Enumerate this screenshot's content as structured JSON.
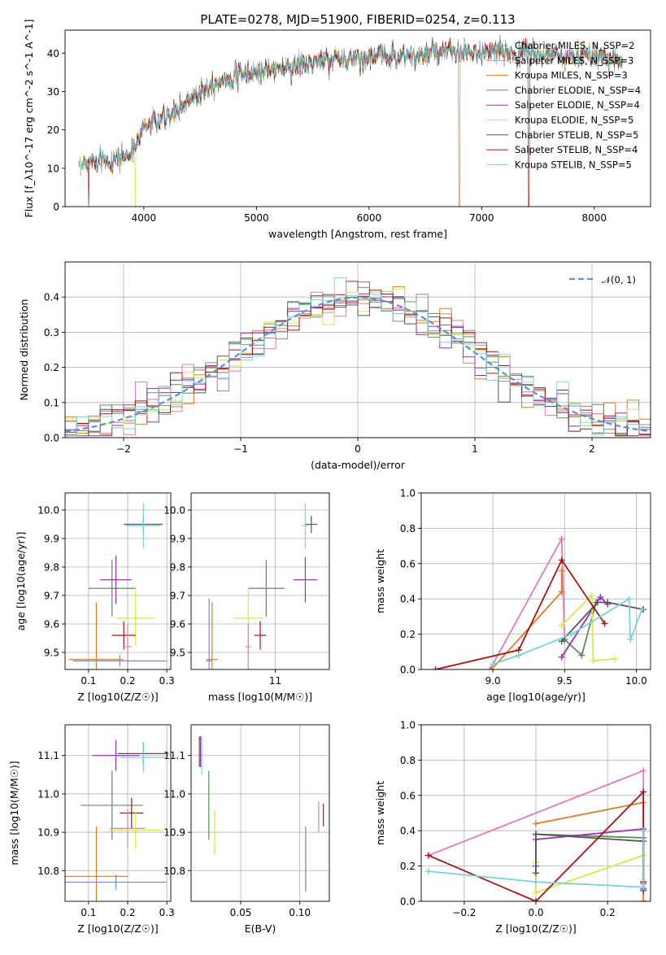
{
  "title": "PLATE=0278, MJD=51900, FIBERID=0254, z=0.113",
  "colors": {
    "chabrier_miles": "#888888",
    "salpeter_miles": "#e07ab7",
    "kroupa_miles": "#d97d28",
    "chabrier_elodie": "#5e8c5c",
    "salpeter_elodie": "#9b30b0",
    "kroupa_elodie": "#d8e84a",
    "chabrier_stelib": "#555555",
    "salpeter_stelib": "#a51515",
    "kroupa_stelib": "#78d2d8",
    "blue": "#6f8fd8",
    "normal": "#5b8fd8"
  },
  "chart_data": [
    {
      "id": "spectrum",
      "type": "line",
      "xlabel": "wavelength [Angstrom, rest frame]",
      "ylabel": "Flux [f_λ10^-17 erg cm^-2 s^-1 A^-1]",
      "xlim": [
        3300,
        8500
      ],
      "ylim": [
        0,
        46
      ],
      "xticks": [
        4000,
        5000,
        6000,
        7000,
        8000
      ],
      "yticks": [
        0,
        10,
        20,
        30,
        40
      ],
      "grid": false,
      "legend_position": "right",
      "continuum": {
        "x": [
          3400,
          3500,
          3600,
          3700,
          3800,
          3900,
          4000,
          4100,
          4200,
          4300,
          4400,
          4600,
          4800,
          5000,
          5200,
          5400,
          5600,
          5800,
          6000,
          6200,
          6400,
          6600,
          6800,
          7000,
          7200,
          7400,
          7600,
          7800,
          8000,
          8200,
          8300
        ],
        "y": [
          9,
          11,
          13,
          12,
          13,
          14,
          21,
          22,
          23,
          25,
          28,
          32,
          34,
          35,
          36,
          37,
          38,
          38.5,
          39,
          39.5,
          39,
          40,
          40,
          40,
          40,
          40,
          39.5,
          39,
          39,
          39,
          38
        ]
      },
      "legend": [
        {
          "name": "Chabrier MILES, N_SSP=2",
          "color": "#888888"
        },
        {
          "name": "Salpeter MILES, N_SSP=3",
          "color": "#e07ab7"
        },
        {
          "name": "Kroupa MILES, N_SSP=3",
          "color": "#d97d28"
        },
        {
          "name": "Chabrier ELODIE, N_SSP=4",
          "color": "#5e8c5c"
        },
        {
          "name": "Salpeter ELODIE, N_SSP=4",
          "color": "#9b30b0"
        },
        {
          "name": "Kroupa ELODIE, N_SSP=5",
          "color": "#d8e84a"
        },
        {
          "name": "Chabrier STELIB, N_SSP=5",
          "color": "#555555"
        },
        {
          "name": "Salpeter STELIB, N_SSP=4",
          "color": "#a51515"
        },
        {
          "name": "Kroupa STELIB, N_SSP=5",
          "color": "#78d2d8"
        }
      ]
    },
    {
      "id": "residuals",
      "type": "line",
      "xlabel": "(data-model)/error",
      "ylabel": "Normed distribution",
      "xlim": [
        -2.5,
        2.5
      ],
      "ylim": [
        0,
        0.5
      ],
      "xticks": [
        -2,
        -1,
        0,
        1,
        2
      ],
      "yticks": [
        0.0,
        0.1,
        0.2,
        0.3,
        0.4
      ],
      "grid": true,
      "legend": [
        {
          "name": "𝒩(0, 1)",
          "color": "#5b8fd8"
        }
      ],
      "legend_position": "top-right"
    },
    {
      "id": "age_vs_Z",
      "type": "scatter",
      "xlabel": "Z [log10(Z/Z☉)]",
      "ylabel": "age [log10(age/yr)]",
      "xlim": [
        0.04,
        0.31
      ],
      "ylim": [
        9.44,
        10.06
      ],
      "xticks": [
        0.1,
        0.2,
        0.3
      ],
      "yticks": [
        9.5,
        9.6,
        9.7,
        9.8,
        9.9,
        10.0
      ],
      "grid": true,
      "points": [
        {
          "x": 0.24,
          "y": 9.95,
          "xerr": 0.05,
          "yerr": 0.03,
          "color": "#555555"
        },
        {
          "x": 0.24,
          "y": 9.945,
          "xerr": 0.045,
          "yerr": 0.08,
          "color": "#78d2d8"
        },
        {
          "x": 0.16,
          "y": 9.725,
          "xerr": 0.06,
          "yerr": 0.1,
          "color": "#5e8c5c"
        },
        {
          "x": 0.17,
          "y": 9.755,
          "xerr": 0.04,
          "yerr": 0.085,
          "color": "#9b30b0"
        },
        {
          "x": 0.22,
          "y": 9.62,
          "xerr": 0.05,
          "yerr": 0.1,
          "color": "#d8e84a"
        },
        {
          "x": 0.19,
          "y": 9.56,
          "xerr": 0.03,
          "yerr": 0.05,
          "color": "#a51515"
        },
        {
          "x": 0.2,
          "y": 9.52,
          "xerr": 0.01,
          "yerr": 0.08,
          "color": "#e07ab7"
        },
        {
          "x": 0.12,
          "y": 9.475,
          "xerr": 0.07,
          "yerr": 0.2,
          "color": "#d97d28"
        },
        {
          "x": 0.18,
          "y": 9.47,
          "xerr": 0.12,
          "yerr": 0.02,
          "color": "#6f8fd8"
        }
      ]
    },
    {
      "id": "age_vs_mass",
      "type": "scatter",
      "xlabel": "mass [log10(M/M☉)]",
      "ylabel": "",
      "xlim": [
        10.72,
        11.18
      ],
      "ylim": [
        9.44,
        10.06
      ],
      "xticks": [
        11.0
      ],
      "yticks": [
        9.5,
        9.6,
        9.7,
        9.8,
        9.9,
        10.0
      ],
      "grid": true,
      "points": [
        {
          "x": 11.12,
          "y": 9.95,
          "xerr": 0.02,
          "yerr": 0.03,
          "color": "#555555"
        },
        {
          "x": 11.1,
          "y": 9.945,
          "xerr": 0.01,
          "yerr": 0.08,
          "color": "#78d2d8"
        },
        {
          "x": 10.97,
          "y": 9.725,
          "xerr": 0.06,
          "yerr": 0.1,
          "color": "#5e8c5c"
        },
        {
          "x": 11.1,
          "y": 9.755,
          "xerr": 0.04,
          "yerr": 0.08,
          "color": "#9b30b0"
        },
        {
          "x": 10.91,
          "y": 9.62,
          "xerr": 0.05,
          "yerr": 0.1,
          "color": "#d8e84a"
        },
        {
          "x": 10.95,
          "y": 9.56,
          "xerr": 0.02,
          "yerr": 0.05,
          "color": "#a51515"
        },
        {
          "x": 10.91,
          "y": 9.52,
          "xerr": 0.01,
          "yerr": 0.08,
          "color": "#e07ab7"
        },
        {
          "x": 10.79,
          "y": 9.475,
          "xerr": 0.02,
          "yerr": 0.2,
          "color": "#d97d28"
        },
        {
          "x": 10.78,
          "y": 9.47,
          "xerr": 0.01,
          "yerr": 0.22,
          "color": "#6f8fd8"
        }
      ]
    },
    {
      "id": "weight_vs_age",
      "type": "line",
      "xlabel": "age [log10(age/yr)]",
      "ylabel": "mass weight",
      "xlim": [
        8.5,
        10.1
      ],
      "ylim": [
        0,
        1
      ],
      "xticks": [
        9.0,
        9.5,
        10.0
      ],
      "yticks": [
        0.0,
        0.2,
        0.4,
        0.6,
        0.8,
        1.0
      ],
      "grid": true,
      "series": [
        {
          "color": "#e07ab7",
          "x": [
            8.98,
            9.48,
            9.5
          ],
          "y": [
            0.0,
            0.74,
            0.16
          ]
        },
        {
          "color": "#d97d28",
          "x": [
            8.99,
            9.48,
            9.48
          ],
          "y": [
            0.0,
            0.44,
            0.56
          ]
        },
        {
          "color": "#5e8c5c",
          "x": [
            9.5,
            9.62,
            9.72
          ],
          "y": [
            0.17,
            0.08,
            0.38
          ]
        },
        {
          "color": "#9b30b0",
          "x": [
            9.48,
            9.75,
            9.8
          ],
          "y": [
            0.07,
            0.41,
            0.37
          ]
        },
        {
          "color": "#d8e84a",
          "x": [
            9.48,
            9.69,
            9.7,
            9.85
          ],
          "y": [
            0.25,
            0.42,
            0.05,
            0.06
          ]
        },
        {
          "color": "#555555",
          "x": [
            9.48,
            9.73,
            9.8,
            10.05
          ],
          "y": [
            0.16,
            0.38,
            0.38,
            0.34
          ]
        },
        {
          "color": "#a51515",
          "x": [
            8.6,
            9.18,
            9.48,
            9.78
          ],
          "y": [
            0.0,
            0.11,
            0.62,
            0.26
          ]
        },
        {
          "color": "#78d2d8",
          "x": [
            9.0,
            9.18,
            9.55,
            9.95,
            9.96,
            10.04
          ],
          "y": [
            0.03,
            0.08,
            0.2,
            0.4,
            0.17,
            0.34
          ]
        }
      ]
    },
    {
      "id": "mass_vs_Z",
      "type": "scatter",
      "xlabel": "Z [log10(Z/Z☉)]",
      "ylabel": "mass [log10(M/M☉)]",
      "xlim": [
        0.04,
        0.31
      ],
      "ylim": [
        10.72,
        11.18
      ],
      "xticks": [
        0.1,
        0.2,
        0.3
      ],
      "yticks": [
        10.8,
        10.9,
        11.0,
        11.1
      ],
      "grid": true,
      "points": [
        {
          "x": 0.24,
          "y": 11.105,
          "xerr": 0.065,
          "yerr": 0.03,
          "color": "#555555"
        },
        {
          "x": 0.24,
          "y": 11.095,
          "xerr": 0.06,
          "yerr": 0.04,
          "color": "#78d2d8"
        },
        {
          "x": 0.17,
          "y": 11.1,
          "xerr": 0.06,
          "yerr": 0.04,
          "color": "#9b30b0"
        },
        {
          "x": 0.16,
          "y": 10.97,
          "xerr": 0.08,
          "yerr": 0.09,
          "color": "#5e8c5c"
        },
        {
          "x": 0.21,
          "y": 10.95,
          "xerr": 0.03,
          "yerr": 0.04,
          "color": "#a51515"
        },
        {
          "x": 0.2,
          "y": 10.91,
          "xerr": 0.045,
          "yerr": 0.05,
          "color": "#e07ab7"
        },
        {
          "x": 0.22,
          "y": 10.905,
          "xerr": 0.07,
          "yerr": 0.05,
          "color": "#d8e84a"
        },
        {
          "x": 0.12,
          "y": 10.785,
          "xerr": 0.08,
          "yerr": 0.13,
          "color": "#d97d28"
        },
        {
          "x": 0.17,
          "y": 10.77,
          "xerr": 0.13,
          "yerr": 0.02,
          "color": "#6f8fd8"
        }
      ]
    },
    {
      "id": "mass_vs_ebv",
      "type": "scatter",
      "xlabel": "E(B-V)",
      "ylabel": "",
      "xlim": [
        0.008,
        0.125
      ],
      "ylim": [
        10.72,
        11.18
      ],
      "xticks": [
        0.05,
        0.1
      ],
      "yticks": [
        10.8,
        10.9,
        11.0,
        11.1
      ],
      "grid": true,
      "points": [
        {
          "x": 0.015,
          "y": 11.11,
          "xerr": 0,
          "yerr": 0.04,
          "color": "#555555"
        },
        {
          "x": 0.017,
          "y": 11.1,
          "xerr": 0,
          "yerr": 0.05,
          "color": "#78d2d8"
        },
        {
          "x": 0.016,
          "y": 11.11,
          "xerr": 0,
          "yerr": 0.04,
          "color": "#9b30b0"
        },
        {
          "x": 0.023,
          "y": 10.97,
          "xerr": 0,
          "yerr": 0.09,
          "color": "#5e8c5c"
        },
        {
          "x": 0.028,
          "y": 10.9,
          "xerr": 0,
          "yerr": 0.06,
          "color": "#d8e84a"
        },
        {
          "x": 0.105,
          "y": 10.83,
          "xerr": 0,
          "yerr": 0.085,
          "color": "#d97d28"
        },
        {
          "x": 0.105,
          "y": 10.83,
          "xerr": 0,
          "yerr": 0.08,
          "color": "#6f8fd8"
        },
        {
          "x": 0.116,
          "y": 10.94,
          "xerr": 0,
          "yerr": 0.04,
          "color": "#e07ab7"
        },
        {
          "x": 0.12,
          "y": 10.945,
          "xerr": 0,
          "yerr": 0.03,
          "color": "#a51515"
        }
      ]
    },
    {
      "id": "weight_vs_Z",
      "type": "line",
      "xlabel": "Z [log10(Z/Z☉)]",
      "ylabel": "mass weight",
      "xlim": [
        -0.32,
        0.32
      ],
      "ylim": [
        0,
        1
      ],
      "xticks": [
        -0.2,
        0.0,
        0.2
      ],
      "yticks": [
        0.0,
        0.2,
        0.4,
        0.6,
        0.8,
        1.0
      ],
      "grid": true,
      "series": [
        {
          "color": "#e07ab7",
          "x": [
            -0.3,
            0.3,
            0.3
          ],
          "y": [
            0.26,
            0.74,
            0.0
          ]
        },
        {
          "color": "#d97d28",
          "x": [
            0.0,
            0.3,
            0.3
          ],
          "y": [
            0.44,
            0.56,
            0.0
          ]
        },
        {
          "color": "#5e8c5c",
          "x": [
            0.0,
            0.3,
            0.3
          ],
          "y": [
            0.38,
            0.36,
            0.1
          ]
        },
        {
          "color": "#9b30b0",
          "x": [
            0.0,
            0.0,
            0.3,
            0.3
          ],
          "y": [
            0.2,
            0.35,
            0.41,
            0.07
          ]
        },
        {
          "color": "#d8e84a",
          "x": [
            0.0,
            0.0,
            0.3
          ],
          "y": [
            0.22,
            0.05,
            0.26
          ]
        },
        {
          "color": "#555555",
          "x": [
            0.0,
            0.0,
            0.3,
            0.3
          ],
          "y": [
            0.16,
            0.38,
            0.34,
            0.06
          ]
        },
        {
          "color": "#a51515",
          "x": [
            -0.3,
            0.0,
            0.3,
            0.3
          ],
          "y": [
            0.26,
            0.0,
            0.62,
            0.11
          ]
        },
        {
          "color": "#78d2d8",
          "x": [
            -0.3,
            0.0,
            0.3,
            0.3
          ],
          "y": [
            0.17,
            0.11,
            0.08,
            0.4
          ]
        }
      ]
    }
  ]
}
